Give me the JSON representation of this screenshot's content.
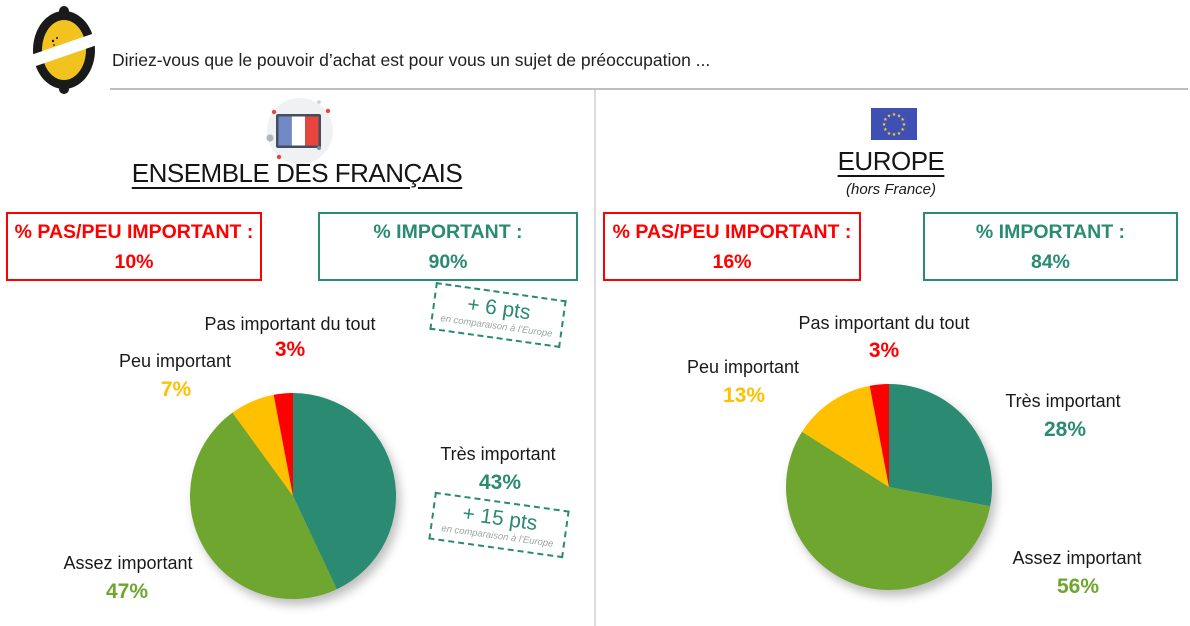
{
  "header": {
    "title": "Diriez-vous que le pouvoir d’achat est pour vous un sujet de préoccupation ...",
    "logo": "lemon-logo"
  },
  "colors": {
    "negative": "#FF0000",
    "positive": "#2A8A72",
    "accent_green": "#6FA62F",
    "accent_yellow": "#FFC000",
    "annotation_teal": "#2A8A72",
    "annotation_subtext": "#9AA5A1",
    "divider": "#BFBFBF"
  },
  "panels": [
    {
      "heading": "ENSEMBLE DES FRANÇAIS",
      "flag": "france-flag-icon",
      "negative_box": {
        "label": "% PAS/PEU IMPORTANT :",
        "value": "10%"
      },
      "positive_box": {
        "label": "% IMPORTANT :",
        "value": "90%"
      },
      "annotations": [
        {
          "text": "+ 6 pts",
          "subtext": "en comparaison à l’Europe"
        },
        {
          "text": "+ 15 pts",
          "subtext": "en comparaison à l’Europe"
        }
      ]
    },
    {
      "heading": "EUROPE",
      "subheading": "(hors France)",
      "flag": "europe-flag-icon",
      "negative_box": {
        "label": "% PAS/PEU IMPORTANT :",
        "value": "16%"
      },
      "positive_box": {
        "label": "% IMPORTANT :",
        "value": "84%"
      }
    }
  ],
  "chart_data": [
    {
      "type": "pie",
      "title": "Ensemble des Français",
      "start_angle": "12-oclock",
      "direction": "clockwise",
      "slices": [
        {
          "label": "Très important",
          "value": 43,
          "display": "43%",
          "color": "#2A8A72"
        },
        {
          "label": "Assez important",
          "value": 47,
          "display": "47%",
          "color": "#6FA62F"
        },
        {
          "label": "Peu important",
          "value": 7,
          "display": "7%",
          "color": "#FFC000"
        },
        {
          "label": "Pas important du tout",
          "value": 3,
          "display": "3%",
          "color": "#FF0000"
        }
      ]
    },
    {
      "type": "pie",
      "title": "Europe (hors France)",
      "start_angle": "12-oclock",
      "direction": "clockwise",
      "slices": [
        {
          "label": "Très important",
          "value": 28,
          "display": "28%",
          "color": "#2A8A72"
        },
        {
          "label": "Assez important",
          "value": 56,
          "display": "56%",
          "color": "#6FA62F"
        },
        {
          "label": "Peu important",
          "value": 13,
          "display": "13%",
          "color": "#FFC000"
        },
        {
          "label": "Pas important du tout",
          "value": 3,
          "display": "3%",
          "color": "#FF0000"
        }
      ]
    }
  ]
}
